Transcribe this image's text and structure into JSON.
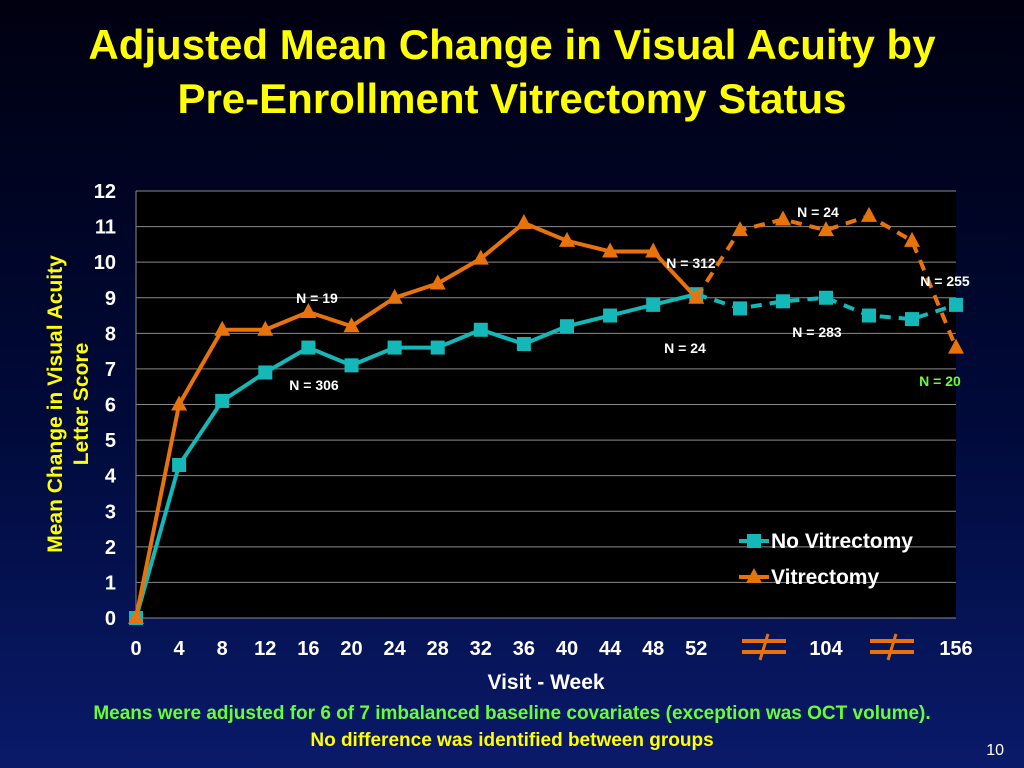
{
  "slide": {
    "title_line1": "Adjusted Mean Change in Visual Acuity by",
    "title_line2": "Pre-Enrollment Vitrectomy Status",
    "footnote_line1": "Means were adjusted for 6 of 7 imbalanced baseline covariates (exception was OCT volume).",
    "footnote_line2": "No difference was identified between groups",
    "page_number": "10"
  },
  "colors": {
    "no_vitrectomy": "#14b8b8",
    "vitrectomy": "#e8730c",
    "title": "#ffff00",
    "green_note": "#66ff33"
  },
  "chart_data": {
    "type": "line",
    "title": "",
    "xlabel": "Visit - Week",
    "ylabel_line1": "Mean Change in Visual Acuity",
    "ylabel_line2": "Letter Score",
    "ylim": [
      0,
      12
    ],
    "yticks": [
      "0",
      "1",
      "2",
      "3",
      "4",
      "5",
      "6",
      "7",
      "8",
      "9",
      "10",
      "11",
      "12"
    ],
    "x_tick_labels": [
      "0",
      "4",
      "8",
      "12",
      "16",
      "20",
      "24",
      "28",
      "32",
      "36",
      "40",
      "44",
      "48",
      "52",
      "104",
      "156"
    ],
    "grid": true,
    "legend_position": "bottom-right",
    "axis_break_symbol": "≠",
    "series": [
      {
        "name": "No Vitrectomy",
        "marker": "square",
        "weeks_solid": [
          0,
          4,
          8,
          12,
          16,
          20,
          24,
          28,
          32,
          36,
          40,
          44,
          48,
          52
        ],
        "values_solid": [
          0,
          4.3,
          6.1,
          6.9,
          7.6,
          7.1,
          7.6,
          7.6,
          8.1,
          7.7,
          8.2,
          8.5,
          8.8,
          9.1
        ],
        "values_dashed_after_52": [
          8.7,
          8.9,
          9.0,
          8.5,
          8.4,
          8.8
        ]
      },
      {
        "name": "Vitrectomy",
        "marker": "triangle",
        "weeks_solid": [
          0,
          4,
          8,
          12,
          16,
          20,
          24,
          28,
          32,
          36,
          40,
          44,
          48,
          52
        ],
        "values_solid": [
          0,
          6.0,
          8.1,
          8.1,
          8.6,
          8.2,
          9.0,
          9.4,
          10.1,
          11.1,
          10.6,
          10.3,
          10.3,
          9.0
        ],
        "values_dashed_after_52": [
          10.9,
          11.2,
          10.9,
          11.3,
          10.6,
          7.6
        ]
      }
    ],
    "annotations": [
      {
        "text": "N = 19",
        "color": "white"
      },
      {
        "text": "N = 306",
        "color": "white"
      },
      {
        "text": "N = 312",
        "color": "white"
      },
      {
        "text": "N = 24",
        "color": "white"
      },
      {
        "text": "N = 24",
        "color": "white"
      },
      {
        "text": "N = 283",
        "color": "white"
      },
      {
        "text": "N = 255",
        "color": "white"
      },
      {
        "text": "N = 20",
        "color": "green"
      }
    ]
  }
}
